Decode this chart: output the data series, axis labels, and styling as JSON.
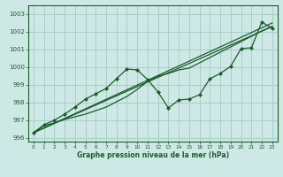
{
  "xlabel": "Graphe pression niveau de la mer (hPa)",
  "xlim": [
    -0.5,
    23.5
  ],
  "ylim": [
    995.8,
    1003.5
  ],
  "yticks": [
    996,
    997,
    998,
    999,
    1000,
    1001,
    1002,
    1003
  ],
  "xticks": [
    0,
    1,
    2,
    3,
    4,
    5,
    6,
    7,
    8,
    9,
    10,
    11,
    12,
    13,
    14,
    15,
    16,
    17,
    18,
    19,
    20,
    21,
    22,
    23
  ],
  "background_color": "#cee9e5",
  "grid_color": "#a8ceca",
  "line_color": "#1a5c2a",
  "series": [
    {
      "x": [
        0,
        23
      ],
      "y": [
        996.3,
        1002.3
      ],
      "marker": false
    },
    {
      "x": [
        0,
        23
      ],
      "y": [
        996.3,
        1002.5
      ],
      "marker": false
    },
    {
      "x": [
        0,
        1,
        2,
        3,
        4,
        5,
        6,
        7,
        8,
        9,
        10,
        11,
        12,
        13,
        14,
        15,
        16,
        17,
        18,
        19,
        20,
        21,
        22,
        23
      ],
      "y": [
        996.3,
        996.7,
        996.85,
        997.05,
        997.2,
        997.35,
        997.55,
        997.75,
        998.05,
        998.35,
        998.75,
        999.2,
        999.5,
        999.65,
        999.85,
        999.95,
        1000.25,
        1000.55,
        1000.85,
        1001.15,
        1001.45,
        1001.75,
        1002.05,
        1002.3
      ],
      "marker": false
    },
    {
      "x": [
        0,
        1,
        2,
        3,
        4,
        5,
        6,
        7,
        8,
        9,
        10,
        11,
        12,
        13,
        14,
        15,
        16,
        17,
        18,
        19,
        20,
        21,
        22,
        23
      ],
      "y": [
        996.3,
        996.75,
        997.0,
        997.35,
        997.75,
        998.2,
        998.5,
        998.8,
        999.35,
        999.9,
        999.85,
        999.3,
        998.6,
        997.7,
        998.15,
        998.2,
        998.45,
        999.35,
        999.65,
        1000.05,
        1001.05,
        1001.1,
        1002.55,
        1002.2
      ],
      "marker": true
    }
  ]
}
